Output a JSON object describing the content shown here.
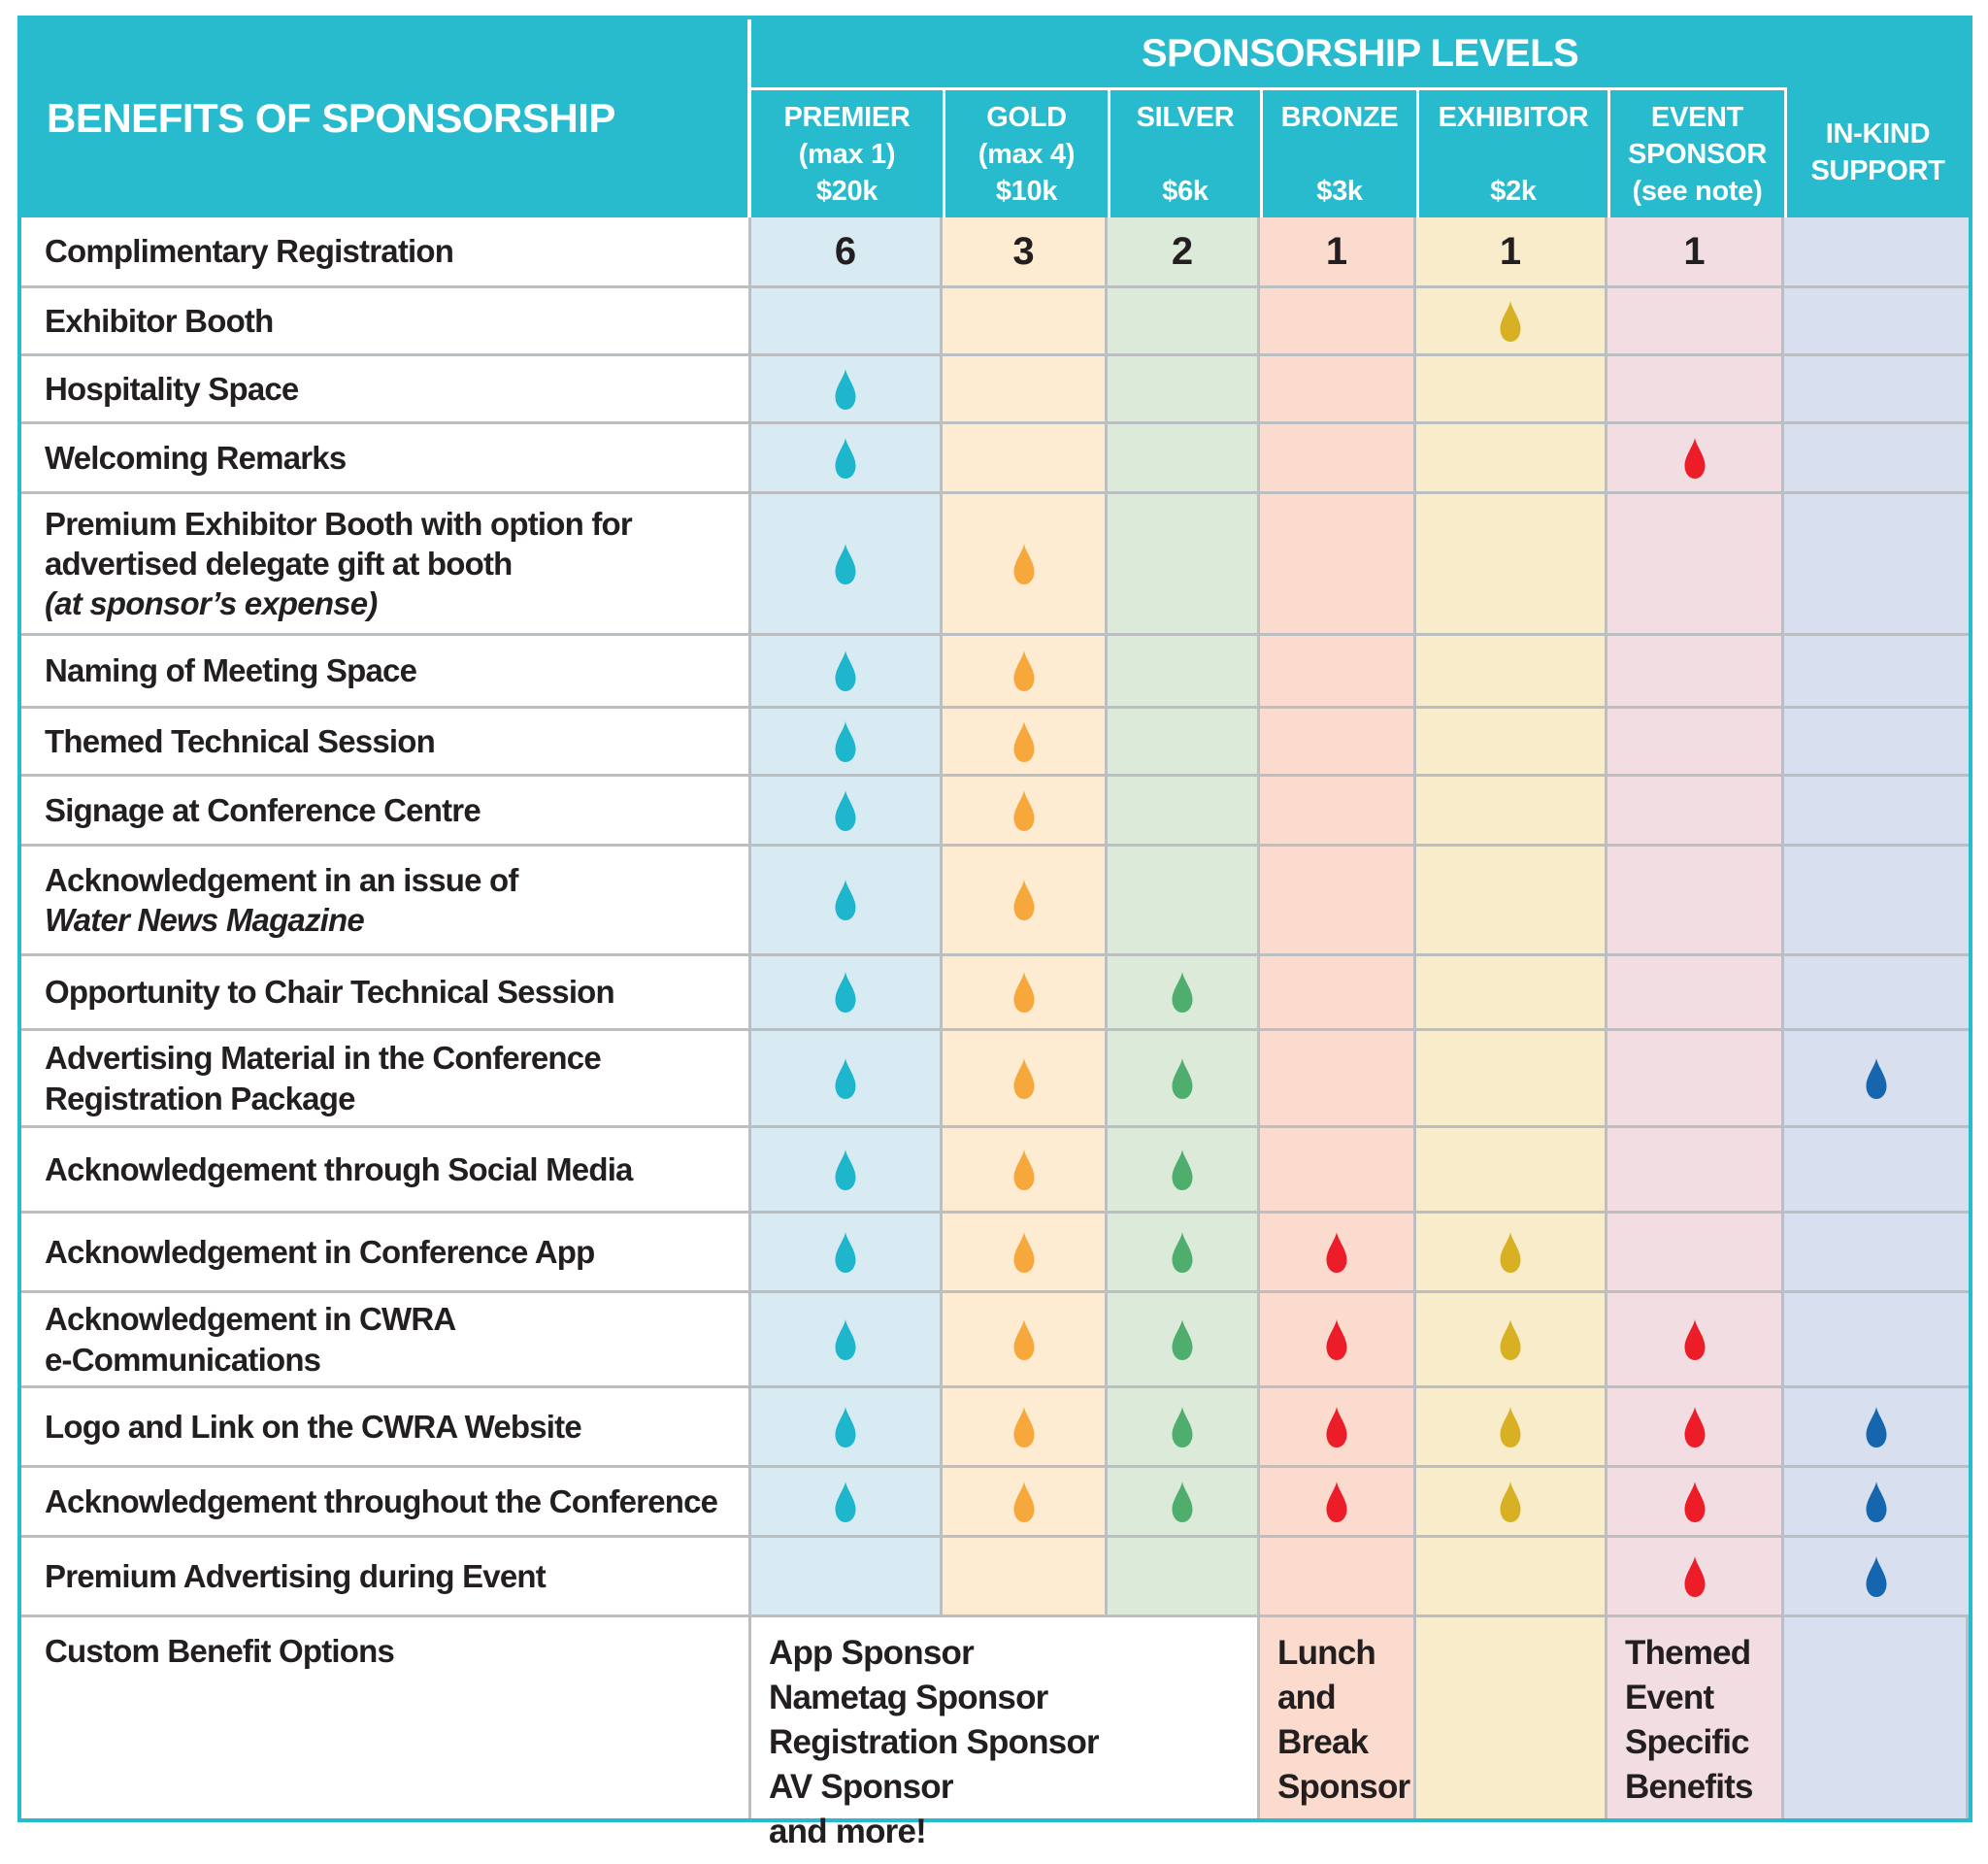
{
  "header": {
    "benefits_title": "BENEFITS OF SPONSORSHIP",
    "levels_title": "SPONSORSHIP LEVELS",
    "columns": [
      {
        "id": "premier",
        "lines": [
          "PREMIER",
          "(max 1)",
          "$20k"
        ],
        "tint": "#d9ebf2",
        "drop_color": "#1eb6cd"
      },
      {
        "id": "gold",
        "lines": [
          "GOLD",
          "(max 4)",
          "$10k"
        ],
        "tint": "#fdecd1",
        "drop_color": "#f7a83c"
      },
      {
        "id": "silver",
        "lines": [
          "SILVER",
          "",
          "$6k"
        ],
        "tint": "#dcebd9",
        "drop_color": "#4fae6e"
      },
      {
        "id": "bronze",
        "lines": [
          "BRONZE",
          "",
          "$3k"
        ],
        "tint": "#fadbce",
        "drop_color": "#ec1c29"
      },
      {
        "id": "exhibitor",
        "lines": [
          "EXHIBITOR",
          "",
          "$2k"
        ],
        "tint": "#f8ecca",
        "drop_color": "#d8b024"
      },
      {
        "id": "event-sponsor",
        "lines": [
          "EVENT",
          "SPONSOR",
          "(see note)"
        ],
        "tint": "#f2dee2",
        "drop_color": "#ec1c29"
      },
      {
        "id": "in-kind",
        "lines": [
          "IN-KIND",
          "SUPPORT"
        ],
        "tint": "#d8dfee",
        "drop_color": "#1566ae"
      }
    ]
  },
  "rows": [
    {
      "label": "Complimentary Registration",
      "cells": [
        "6",
        "3",
        "2",
        "1",
        "1",
        "1",
        ""
      ]
    },
    {
      "label": "Exhibitor Booth",
      "cells": [
        "",
        "",
        "",
        "",
        "drop",
        "",
        ""
      ]
    },
    {
      "label": "Hospitality Space",
      "cells": [
        "drop",
        "",
        "",
        "",
        "",
        "",
        ""
      ]
    },
    {
      "label": "Welcoming Remarks",
      "cells": [
        "drop",
        "",
        "",
        "",
        "",
        "drop",
        ""
      ]
    },
    {
      "label": "Premium Exhibitor Booth with option for\nadvertised delegate gift at booth",
      "label_italic": "(at sponsor’s expense)",
      "cells": [
        "drop",
        "drop",
        "",
        "",
        "",
        "",
        ""
      ]
    },
    {
      "label": "Naming of Meeting Space",
      "cells": [
        "drop",
        "drop",
        "",
        "",
        "",
        "",
        ""
      ]
    },
    {
      "label": "Themed Technical Session",
      "cells": [
        "drop",
        "drop",
        "",
        "",
        "",
        "",
        ""
      ]
    },
    {
      "label": "Signage at Conference Centre",
      "cells": [
        "drop",
        "drop",
        "",
        "",
        "",
        "",
        ""
      ]
    },
    {
      "label": "Acknowledgement in an issue of",
      "label_italic": "Water News Magazine",
      "cells": [
        "drop",
        "drop",
        "",
        "",
        "",
        "",
        ""
      ]
    },
    {
      "label": "Opportunity to Chair Technical Session",
      "cells": [
        "drop",
        "drop",
        "drop",
        "",
        "",
        "",
        ""
      ]
    },
    {
      "label": "Advertising Material in the Conference\nRegistration Package",
      "cells": [
        "drop",
        "drop",
        "drop",
        "",
        "",
        "",
        "drop"
      ]
    },
    {
      "label": "Acknowledgement through Social Media",
      "cells": [
        "drop",
        "drop",
        "drop",
        "",
        "",
        "",
        ""
      ]
    },
    {
      "label": "Acknowledgement in Conference App",
      "cells": [
        "drop",
        "drop",
        "drop",
        "drop",
        "drop",
        "",
        ""
      ]
    },
    {
      "label": "Acknowledgement in CWRA\ne-Communications",
      "cells": [
        "drop",
        "drop",
        "drop",
        "drop",
        "drop",
        "drop",
        ""
      ]
    },
    {
      "label": "Logo and Link on the CWRA Website",
      "cells": [
        "drop",
        "drop",
        "drop",
        "drop",
        "drop",
        "drop",
        "drop"
      ]
    },
    {
      "label": "Acknowledgement throughout the Conference",
      "cells": [
        "drop",
        "drop",
        "drop",
        "drop",
        "drop",
        "drop",
        "drop"
      ]
    },
    {
      "label": "Premium Advertising during Event",
      "cells": [
        "",
        "",
        "",
        "",
        "",
        "drop",
        "drop"
      ]
    }
  ],
  "custom_row": {
    "label": "Custom Benefit Options",
    "packages": "App Sponsor\nNametag Sponsor\nRegistration Sponsor\nAV Sponsor\nand more!",
    "bronze": "Lunch\nand\nBreak\nSponsor",
    "event": "Themed\nEvent\nSpecific\nBenefits"
  },
  "colors": {
    "header_teal": "#28bacd",
    "grid_line": "#bcbfc1",
    "text": "#231f20"
  }
}
